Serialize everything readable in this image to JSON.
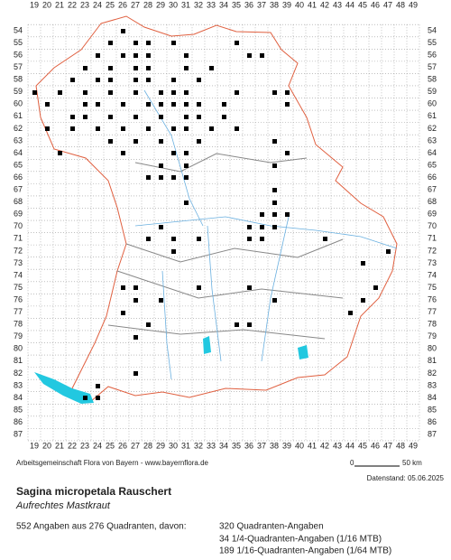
{
  "map": {
    "columns": [
      19,
      20,
      21,
      22,
      23,
      24,
      25,
      26,
      27,
      28,
      29,
      30,
      31,
      32,
      33,
      34,
      35,
      36,
      37,
      38,
      39,
      40,
      41,
      42,
      43,
      44,
      45,
      46,
      47,
      48,
      49
    ],
    "rows": [
      54,
      55,
      56,
      57,
      58,
      59,
      60,
      61,
      62,
      63,
      64,
      65,
      66,
      67,
      68,
      69,
      70,
      71,
      72,
      73,
      74,
      75,
      76,
      77,
      78,
      79,
      80,
      81,
      82,
      83,
      84,
      85,
      86,
      87
    ],
    "credit": "Arbeitsgemeinschaft Flora von Bayern - www.bayernflora.de",
    "scale_start": "0",
    "scale_end": "50 km",
    "date": "Datenstand: 05.06.2025",
    "species": "Sagina micropetala Rauschert",
    "common_name": "Aufrechtes Mastkraut",
    "summary": "552 Angaben aus 276 Quadranten, davon:",
    "counts": [
      "320 Quadranten-Angaben",
      "34 1/4-Quadranten-Angaben (1/16 MTB)",
      "189 1/16-Quadranten-Angaben (1/64 MTB)"
    ]
  }
}
